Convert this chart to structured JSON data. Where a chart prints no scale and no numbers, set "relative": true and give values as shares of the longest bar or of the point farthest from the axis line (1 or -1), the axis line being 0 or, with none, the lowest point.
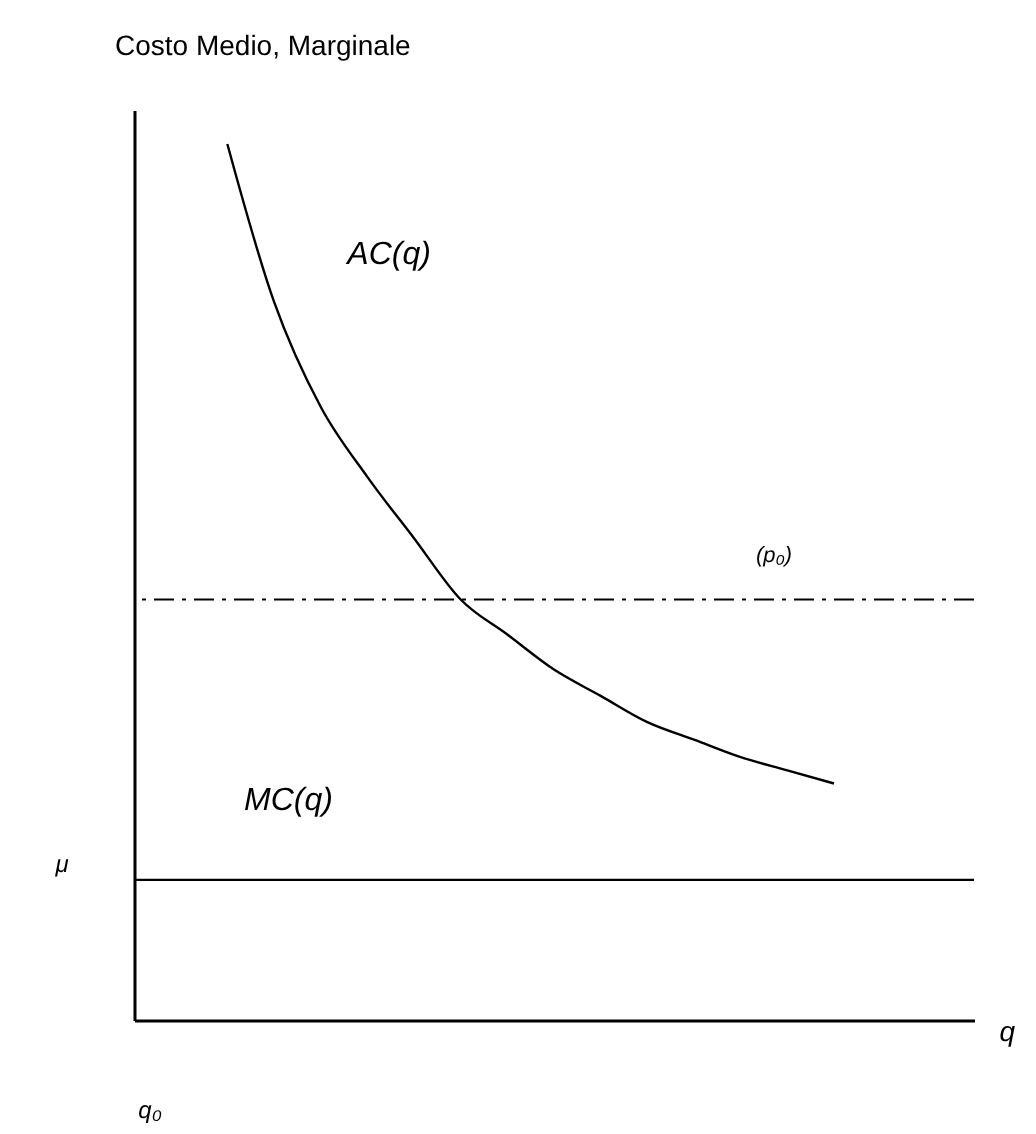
{
  "chart_data": {
    "type": "line",
    "relative": true,
    "ylabel": "Costo Medio, Marginale",
    "xlabel": "q",
    "categories": [
      null,
      null,
      null,
      null,
      null,
      null,
      null,
      null,
      null,
      null,
      null,
      null,
      null,
      null,
      null,
      null,
      null,
      null,
      null
    ],
    "series": [
      {
        "name": "AC(q)",
        "color": "#000000",
        "values": [
          null,
          null,
          1,
          0.82,
          0.7,
          0.62,
          0.55,
          0.48,
          0.44,
          0.4,
          0.37,
          0.34,
          0.32,
          0.3,
          0.285,
          0.27,
          null,
          null,
          null
        ]
      },
      {
        "name": "MC(q)",
        "color": "#000000",
        "values": [
          0.16,
          0.16,
          0.16,
          0.16,
          0.16,
          0.16,
          0.16,
          0.16,
          0.16,
          0.16,
          0.16,
          0.16,
          0.16,
          0.16,
          0.16,
          0.16,
          0.16,
          0.16,
          0.16
        ]
      }
    ],
    "ref_lines": [
      {
        "axis": "y",
        "value": 0.48,
        "label": "(p₀)",
        "color": "#000000",
        "line_style": "dashed"
      }
    ],
    "annotations": [
      "μ",
      "q₀"
    ],
    "grid": false,
    "marker": "none",
    "line_style": "solid"
  }
}
